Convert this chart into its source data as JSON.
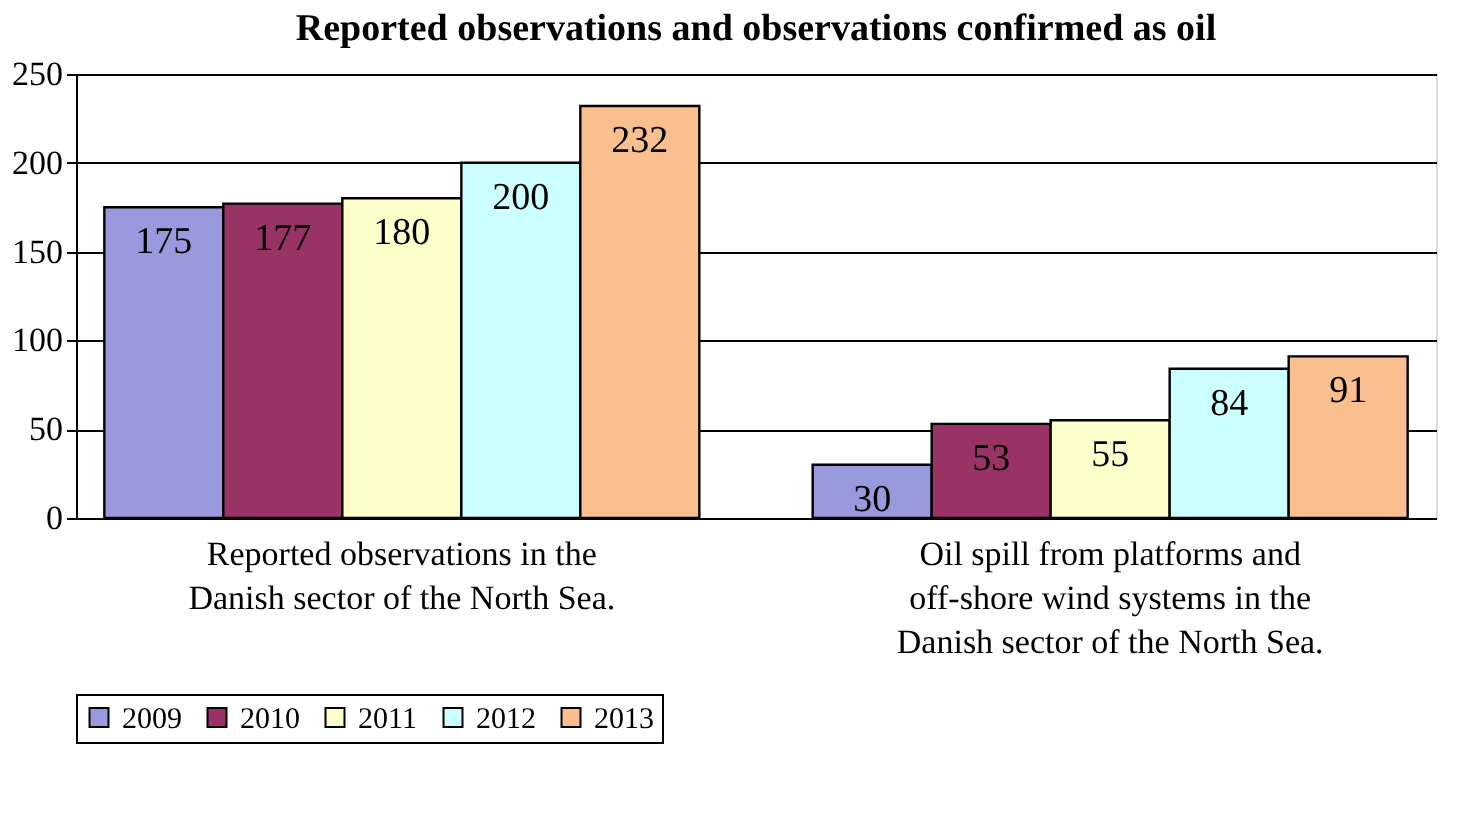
{
  "chart_data": {
    "type": "bar",
    "title": "Reported observations and observations confirmed as oil",
    "categories": [
      "Reported observations in the Danish sector of the North Sea.",
      "Oil spill from platforms and off-shore wind systems in the Danish sector of the North Sea."
    ],
    "series": [
      {
        "name": "2009",
        "color": "#9999dd",
        "values": [
          175,
          30
        ]
      },
      {
        "name": "2010",
        "color": "#993366",
        "values": [
          177,
          53
        ]
      },
      {
        "name": "2011",
        "color": "#ffffcc",
        "values": [
          180,
          55
        ]
      },
      {
        "name": "2012",
        "color": "#ccffff",
        "values": [
          200,
          84
        ]
      },
      {
        "name": "2013",
        "color": "#f9bf8f",
        "values": [
          232,
          91
        ]
      }
    ],
    "ylim": [
      0,
      250
    ],
    "yticks": [
      0,
      50,
      100,
      150,
      200,
      250
    ],
    "grid": "y",
    "legend": "bottom",
    "data_labels": true
  }
}
